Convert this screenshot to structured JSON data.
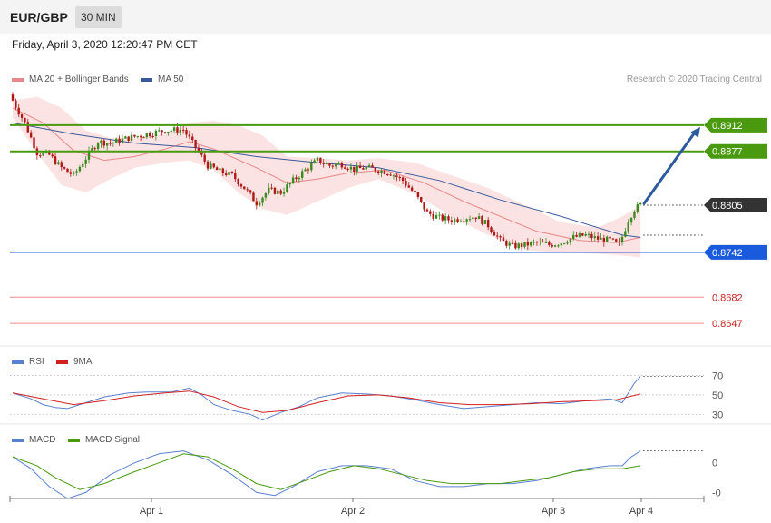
{
  "header": {
    "symbol": "EUR/GBP",
    "timeframe": "30 MIN"
  },
  "datetime": "Friday, April 3, 2020 12:20:47 PM CET",
  "legend": {
    "ma20": "MA 20 + Bollinger Bands",
    "ma50": "MA 50",
    "credit": "Research © 2020 Trading Central",
    "rsi": "RSI",
    "rsi_ma": "9MA",
    "macd": "MACD",
    "macd_signal": "MACD Signal"
  },
  "colors": {
    "ma20": "#e88888",
    "ma50": "#3a5a9a",
    "band": "#fadede",
    "resistance": "#4a9a10",
    "support": "#1a5adc",
    "support_minor": "#f08c8c",
    "support_minor_text": "#c81e1e",
    "current": "#333333",
    "arrow": "#2b5a9e",
    "candle_up": "#3a8a1e",
    "candle_down": "#b01818",
    "rsi": "#5a80d0",
    "rsi_ma": "#d02020",
    "macd": "#5a80d0",
    "macd_signal": "#4a9a10"
  },
  "chart_data": [
    {
      "type": "candlestick",
      "title": "",
      "x_ticks": [
        "Apr 1",
        "Apr 2",
        "Apr 3",
        "Apr 4"
      ],
      "ylim": [
        0.8618,
        0.8958
      ],
      "levels": [
        {
          "name": "resistance-2",
          "value": 0.8912,
          "label": "0.8912",
          "kind": "resistance"
        },
        {
          "name": "resistance-1",
          "value": 0.8877,
          "label": "0.8877",
          "kind": "resistance"
        },
        {
          "name": "current",
          "value": 0.8805,
          "label": "0.8805",
          "kind": "current"
        },
        {
          "name": "support-1",
          "value": 0.8742,
          "label": "0.8742",
          "kind": "support"
        },
        {
          "name": "support-2",
          "value": 0.8682,
          "label": "0.8682",
          "kind": "support_minor"
        },
        {
          "name": "support-3",
          "value": 0.8647,
          "label": "0.8647",
          "kind": "support_minor"
        }
      ],
      "projection": {
        "from": 0.8805,
        "to": 0.8912
      },
      "close_anchors": [
        [
          0,
          0.8945
        ],
        [
          4,
          0.8915
        ],
        [
          8,
          0.8875
        ],
        [
          12,
          0.8872
        ],
        [
          16,
          0.8855
        ],
        [
          20,
          0.8845
        ],
        [
          24,
          0.8868
        ],
        [
          28,
          0.889
        ],
        [
          32,
          0.8888
        ],
        [
          38,
          0.8895
        ],
        [
          44,
          0.89
        ],
        [
          50,
          0.8905
        ],
        [
          56,
          0.8906
        ],
        [
          60,
          0.8882
        ],
        [
          64,
          0.8858
        ],
        [
          68,
          0.885
        ],
        [
          72,
          0.8845
        ],
        [
          76,
          0.8828
        ],
        [
          80,
          0.8808
        ],
        [
          84,
          0.8825
        ],
        [
          88,
          0.8822
        ],
        [
          92,
          0.8838
        ],
        [
          96,
          0.8852
        ],
        [
          100,
          0.8865
        ],
        [
          104,
          0.8858
        ],
        [
          108,
          0.886
        ],
        [
          112,
          0.8853
        ],
        [
          116,
          0.8855
        ],
        [
          120,
          0.8852
        ],
        [
          124,
          0.8848
        ],
        [
          128,
          0.8838
        ],
        [
          132,
          0.882
        ],
        [
          136,
          0.8795
        ],
        [
          140,
          0.8788
        ],
        [
          144,
          0.8785
        ],
        [
          148,
          0.8788
        ],
        [
          152,
          0.879
        ],
        [
          156,
          0.8778
        ],
        [
          160,
          0.8758
        ],
        [
          164,
          0.875
        ],
        [
          168,
          0.8752
        ],
        [
          172,
          0.8755
        ],
        [
          176,
          0.8752
        ],
        [
          180,
          0.8755
        ],
        [
          184,
          0.8762
        ],
        [
          188,
          0.8765
        ],
        [
          192,
          0.876
        ],
        [
          196,
          0.8758
        ],
        [
          199,
          0.8752
        ],
        [
          202,
          0.8785
        ],
        [
          204,
          0.88
        ],
        [
          206,
          0.8805
        ]
      ],
      "ma20": [
        [
          0,
          0.8935
        ],
        [
          10,
          0.8915
        ],
        [
          20,
          0.8878
        ],
        [
          30,
          0.8865
        ],
        [
          40,
          0.887
        ],
        [
          50,
          0.888
        ],
        [
          58,
          0.889
        ],
        [
          66,
          0.888
        ],
        [
          80,
          0.8855
        ],
        [
          90,
          0.8835
        ],
        [
          100,
          0.884
        ],
        [
          110,
          0.8848
        ],
        [
          122,
          0.8852
        ],
        [
          135,
          0.8835
        ],
        [
          148,
          0.881
        ],
        [
          160,
          0.879
        ],
        [
          172,
          0.877
        ],
        [
          186,
          0.8758
        ],
        [
          198,
          0.8755
        ],
        [
          206,
          0.8762
        ]
      ],
      "ma50": [
        [
          0,
          0.8915
        ],
        [
          20,
          0.89
        ],
        [
          40,
          0.8888
        ],
        [
          60,
          0.8882
        ],
        [
          80,
          0.887
        ],
        [
          100,
          0.8862
        ],
        [
          120,
          0.8855
        ],
        [
          140,
          0.8838
        ],
        [
          160,
          0.8812
        ],
        [
          180,
          0.879
        ],
        [
          200,
          0.8765
        ],
        [
          206,
          0.8762
        ]
      ],
      "bb_upper": [
        [
          0,
          0.8945
        ],
        [
          8,
          0.895
        ],
        [
          16,
          0.8935
        ],
        [
          24,
          0.8905
        ],
        [
          32,
          0.8895
        ],
        [
          40,
          0.8895
        ],
        [
          50,
          0.89
        ],
        [
          58,
          0.8915
        ],
        [
          66,
          0.8918
        ],
        [
          74,
          0.8912
        ],
        [
          82,
          0.8898
        ],
        [
          90,
          0.887
        ],
        [
          100,
          0.8868
        ],
        [
          110,
          0.8865
        ],
        [
          120,
          0.8868
        ],
        [
          132,
          0.8862
        ],
        [
          144,
          0.8845
        ],
        [
          156,
          0.8828
        ],
        [
          168,
          0.8805
        ],
        [
          180,
          0.8782
        ],
        [
          192,
          0.8775
        ],
        [
          200,
          0.879
        ],
        [
          206,
          0.8805
        ]
      ],
      "bb_lower": [
        [
          0,
          0.8922
        ],
        [
          8,
          0.8875
        ],
        [
          16,
          0.8832
        ],
        [
          24,
          0.8822
        ],
        [
          32,
          0.884
        ],
        [
          40,
          0.8855
        ],
        [
          50,
          0.8862
        ],
        [
          58,
          0.8865
        ],
        [
          66,
          0.8852
        ],
        [
          74,
          0.8822
        ],
        [
          82,
          0.88
        ],
        [
          90,
          0.8792
        ],
        [
          100,
          0.881
        ],
        [
          110,
          0.8828
        ],
        [
          120,
          0.884
        ],
        [
          132,
          0.882
        ],
        [
          144,
          0.879
        ],
        [
          156,
          0.8765
        ],
        [
          168,
          0.8745
        ],
        [
          180,
          0.8742
        ],
        [
          192,
          0.874
        ],
        [
          200,
          0.8738
        ],
        [
          206,
          0.8735
        ]
      ]
    },
    {
      "type": "line",
      "name": "rsi-panel",
      "ylim": [
        20,
        78
      ],
      "y_ticks": [
        {
          "value": 70,
          "label": "70"
        },
        {
          "value": 50,
          "label": "50"
        },
        {
          "value": 30,
          "label": "30"
        }
      ],
      "series": [
        {
          "key": "rsi",
          "name": "RSI",
          "points": [
            [
              0,
              52
            ],
            [
              6,
              46
            ],
            [
              10,
              40
            ],
            [
              14,
              37
            ],
            [
              18,
              36
            ],
            [
              24,
              42
            ],
            [
              30,
              48
            ],
            [
              38,
              52
            ],
            [
              44,
              53
            ],
            [
              52,
              53
            ],
            [
              58,
              57
            ],
            [
              62,
              50
            ],
            [
              66,
              40
            ],
            [
              72,
              34
            ],
            [
              78,
              30
            ],
            [
              82,
              24
            ],
            [
              88,
              32
            ],
            [
              94,
              38
            ],
            [
              100,
              47
            ],
            [
              108,
              52
            ],
            [
              116,
              51
            ],
            [
              124,
              49
            ],
            [
              132,
              45
            ],
            [
              140,
              40
            ],
            [
              148,
              36
            ],
            [
              156,
              38
            ],
            [
              164,
              40
            ],
            [
              172,
              42
            ],
            [
              180,
              41
            ],
            [
              188,
              44
            ],
            [
              196,
              46
            ],
            [
              200,
              42
            ],
            [
              204,
              62
            ],
            [
              206,
              69
            ]
          ]
        },
        {
          "key": "rsi_ma",
          "name": "9MA",
          "points": [
            [
              0,
              52
            ],
            [
              10,
              46
            ],
            [
              20,
              40
            ],
            [
              30,
              44
            ],
            [
              40,
              49
            ],
            [
              50,
              52
            ],
            [
              58,
              54
            ],
            [
              66,
              48
            ],
            [
              74,
              38
            ],
            [
              82,
              32
            ],
            [
              90,
              34
            ],
            [
              100,
              42
            ],
            [
              110,
              49
            ],
            [
              120,
              50
            ],
            [
              130,
              47
            ],
            [
              140,
              42
            ],
            [
              150,
              40
            ],
            [
              160,
              40
            ],
            [
              170,
              41
            ],
            [
              180,
              43
            ],
            [
              190,
              44
            ],
            [
              198,
              45
            ],
            [
              206,
              51
            ]
          ]
        }
      ]
    },
    {
      "type": "line",
      "name": "macd-panel",
      "ylim": [
        -0.0012,
        0.0006
      ],
      "y_ticks": [
        {
          "value": 0,
          "label": "0"
        },
        {
          "value": -0.001,
          "label": "-0"
        }
      ],
      "series": [
        {
          "key": "macd",
          "name": "MACD",
          "points": [
            [
              0,
              0.0002
            ],
            [
              6,
              -0.0002
            ],
            [
              12,
              -0.0008
            ],
            [
              18,
              -0.0012
            ],
            [
              24,
              -0.001
            ],
            [
              32,
              -0.0004
            ],
            [
              40,
              0.0
            ],
            [
              48,
              0.0003
            ],
            [
              56,
              0.0004
            ],
            [
              64,
              0.0001
            ],
            [
              72,
              -0.0004
            ],
            [
              80,
              -0.001
            ],
            [
              86,
              -0.0011
            ],
            [
              92,
              -0.0008
            ],
            [
              100,
              -0.0003
            ],
            [
              108,
              -0.0001
            ],
            [
              116,
              -0.0001
            ],
            [
              124,
              -0.0002
            ],
            [
              132,
              -0.0006
            ],
            [
              140,
              -0.0008
            ],
            [
              148,
              -0.0008
            ],
            [
              156,
              -0.0007
            ],
            [
              164,
              -0.0007
            ],
            [
              172,
              -0.0006
            ],
            [
              180,
              -0.0004
            ],
            [
              188,
              -0.0002
            ],
            [
              196,
              -0.0001
            ],
            [
              200,
              -0.0001
            ],
            [
              203,
              0.0002
            ],
            [
              206,
              0.0004
            ]
          ]
        },
        {
          "key": "macd_signal",
          "name": "MACD Signal",
          "points": [
            [
              0,
              0.0002
            ],
            [
              8,
              -0.0001
            ],
            [
              14,
              -0.0005
            ],
            [
              22,
              -0.0009
            ],
            [
              30,
              -0.0007
            ],
            [
              40,
              -0.0003
            ],
            [
              48,
              0.0
            ],
            [
              56,
              0.0003
            ],
            [
              64,
              0.0002
            ],
            [
              72,
              -0.0002
            ],
            [
              80,
              -0.0007
            ],
            [
              88,
              -0.0009
            ],
            [
              96,
              -0.0006
            ],
            [
              104,
              -0.0003
            ],
            [
              112,
              -0.0001
            ],
            [
              120,
              -0.0002
            ],
            [
              128,
              -0.0004
            ],
            [
              136,
              -0.0006
            ],
            [
              144,
              -0.0007
            ],
            [
              152,
              -0.0007
            ],
            [
              160,
              -0.0007
            ],
            [
              168,
              -0.0006
            ],
            [
              176,
              -0.0005
            ],
            [
              184,
              -0.0003
            ],
            [
              192,
              -0.0002
            ],
            [
              200,
              -0.0002
            ],
            [
              206,
              -0.0001
            ]
          ]
        }
      ]
    }
  ]
}
